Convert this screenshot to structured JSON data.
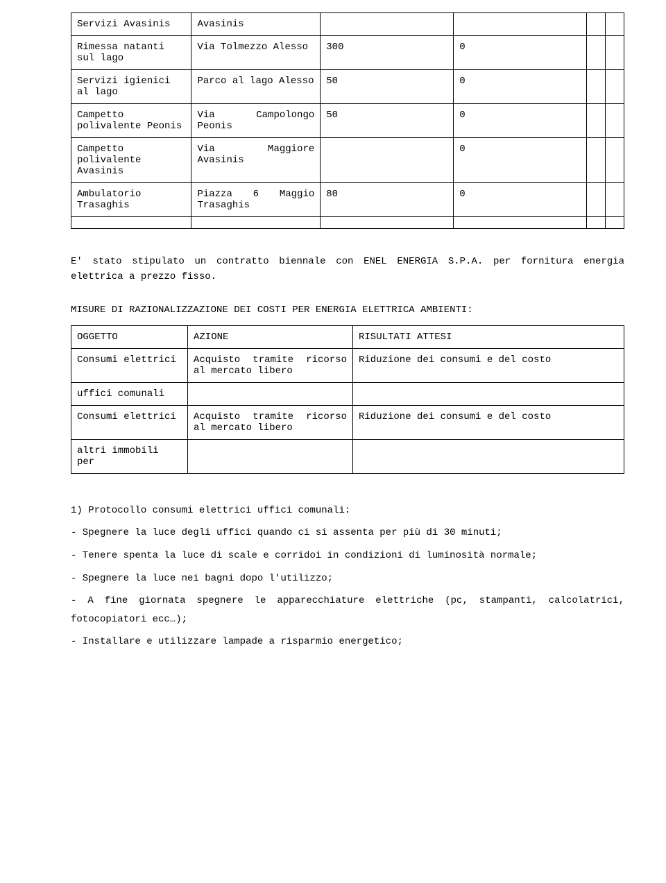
{
  "table1": {
    "columns": [
      "col-a",
      "col-b",
      "col-c",
      "col-d",
      "narrow",
      "narrow"
    ],
    "rows": [
      {
        "c1": "Servizi Avasinis",
        "c2": "Avasinis",
        "c3": "",
        "c4": "",
        "c5": "",
        "c6": ""
      },
      {
        "c1": "Rimessa natanti sul lago",
        "c2": "Via Tolmezzo Alesso",
        "c3": "300",
        "c4": "0",
        "c5": "",
        "c6": ""
      },
      {
        "c1": "Servizi igienici al lago",
        "c2": "Parco al lago Alesso",
        "c3": "50",
        "c4": "0",
        "c5": "",
        "c6": ""
      },
      {
        "c1": "Campetto polivalente Peonis",
        "c2": "Via Campolongo Peonis",
        "c3": "50",
        "c4": "0",
        "c5": "",
        "c6": ""
      },
      {
        "c1": "Campetto polivalente Avasinis",
        "c2": "Via Maggiore Avasinis",
        "c3": "",
        "c4": "0",
        "c5": "",
        "c6": ""
      },
      {
        "c1": "Ambulatorio Trasaghis",
        "c2": "Piazza 6 Maggio Trasaghis",
        "c3": "80",
        "c4": "0",
        "c5": "",
        "c6": ""
      },
      {
        "c1": "",
        "c2": "",
        "c3": "",
        "c4": "",
        "c5": "",
        "c6": ""
      }
    ]
  },
  "body_paragraph": "E' stato stipulato un contratto biennale con ENEL ENERGIA S.P.A. per fornitura energia elettrica a prezzo fisso.",
  "section_title": "MISURE DI RAZIONALIZZAZIONE DEI COSTI PER ENERGIA ELETTRICA AMBIENTI:",
  "table2": {
    "header": {
      "c1": "OGGETTO",
      "c2": "AZIONE",
      "c3": "RISULTATI ATTESI"
    },
    "rows": [
      {
        "c1": "Consumi elettrici",
        "c2": "Acquisto tramite ricorso al mercato libero",
        "c3": "Riduzione dei consumi e del costo"
      },
      {
        "c1": "uffici comunali",
        "c2": "",
        "c3": ""
      },
      {
        "c1": "Consumi elettrici",
        "c2": "Acquisto tramite ricorso al mercato libero",
        "c3": "Riduzione dei consumi e del costo"
      },
      {
        "c1": "altri immobili per",
        "c2": "",
        "c3": ""
      }
    ]
  },
  "protocol": {
    "title": "1) Protocollo consumi elettrici uffici comunali:",
    "items": [
      "- Spegnere la luce degli uffici quando ci si assenta per più di 30 minuti;",
      "- Tenere spenta la luce di scale e corridoi in condizioni di luminosità normale;",
      "- Spegnere la luce nei bagni dopo l'utilizzo;",
      "- A fine giornata spegnere le apparecchiature elettriche (pc, stampanti, calcolatrici, fotocopiatori ecc…);",
      "- Installare e utilizzare lampade a risparmio energetico;"
    ]
  }
}
